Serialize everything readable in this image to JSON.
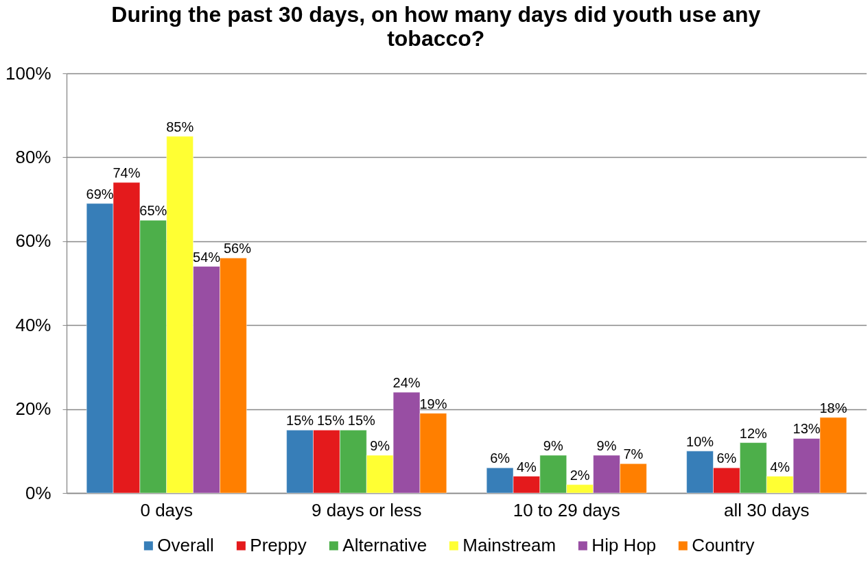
{
  "chart_data": {
    "type": "bar",
    "title": "During the past 30 days, on how many days did youth use any tobacco?",
    "categories": [
      "0 days",
      "9 days or less",
      "10 to 29 days",
      "all 30 days"
    ],
    "series": [
      {
        "name": "Overall",
        "color": "#377eb8",
        "values": [
          69,
          15,
          6,
          10
        ],
        "value_labels": [
          "69%",
          "15%",
          "6%",
          "10%"
        ]
      },
      {
        "name": "Preppy",
        "color": "#e41a1c",
        "values": [
          74,
          15,
          4,
          6
        ],
        "value_labels": [
          "74%",
          "15%",
          "4%",
          "6%"
        ]
      },
      {
        "name": "Alternative",
        "color": "#4daf4a",
        "values": [
          65,
          15,
          9,
          12
        ],
        "value_labels": [
          "65%",
          "15%",
          "9%",
          "12%"
        ]
      },
      {
        "name": "Mainstream",
        "color": "#ffff33",
        "values": [
          85,
          9,
          2,
          4
        ],
        "value_labels": [
          "85%",
          "9%",
          "2%",
          "4%"
        ]
      },
      {
        "name": "Hip Hop",
        "color": "#984ea3",
        "values": [
          54,
          24,
          9,
          13
        ],
        "value_labels": [
          "54%",
          "24%",
          "9%",
          "13%"
        ]
      },
      {
        "name": "Country",
        "color": "#ff7f00",
        "values": [
          56,
          19,
          7,
          18
        ],
        "value_labels": [
          "56%",
          "19%",
          "7%",
          "18%"
        ]
      }
    ],
    "ylim": [
      0,
      100
    ],
    "yticks": [
      {
        "value": 0,
        "label": "0%"
      },
      {
        "value": 20,
        "label": "20%"
      },
      {
        "value": 40,
        "label": "40%"
      },
      {
        "value": 60,
        "label": "60%"
      },
      {
        "value": 80,
        "label": "80%"
      },
      {
        "value": 100,
        "label": "100%"
      }
    ],
    "grid": "y",
    "legend": "bottom"
  }
}
